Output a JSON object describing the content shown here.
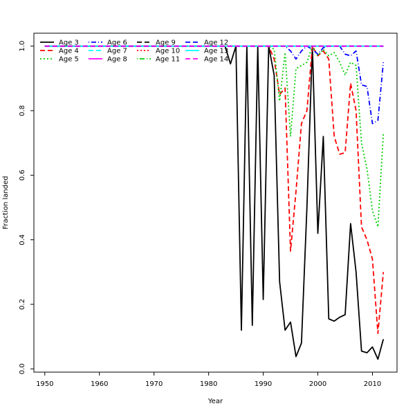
{
  "chart_data": {
    "type": "line",
    "xlabel": "Year",
    "ylabel": "Fraction landed",
    "xlim": [
      1948,
      2014.5
    ],
    "ylim": [
      -0.01,
      1.04
    ],
    "xticks": [
      "1950",
      "1960",
      "1970",
      "1980",
      "1990",
      "2000",
      "2010"
    ],
    "yticks": [
      "0.0",
      "0.2",
      "0.4",
      "0.6",
      "0.8",
      "1.0"
    ],
    "legend_position": "top-left",
    "series": [
      {
        "name": "Age 3",
        "color": "#000000",
        "dash": "solid",
        "x": [
          1950,
          1951,
          1952,
          1953,
          1954,
          1955,
          1956,
          1957,
          1958,
          1959,
          1960,
          1961,
          1962,
          1963,
          1964,
          1965,
          1966,
          1967,
          1968,
          1969,
          1970,
          1971,
          1972,
          1973,
          1974,
          1975,
          1976,
          1977,
          1978,
          1979,
          1980,
          1981,
          1982,
          1983,
          1984,
          1985,
          1986,
          1987,
          1988,
          1989,
          1990,
          1991,
          1992,
          1993,
          1994,
          1995,
          1996,
          1997,
          1998,
          1999,
          2000,
          2001,
          2002,
          2003,
          2004,
          2005,
          2006,
          2007,
          2008,
          2009,
          2010,
          2011,
          2012
        ],
        "y": [
          1,
          1,
          1,
          1,
          1,
          1,
          1,
          1,
          1,
          1,
          1,
          1,
          1,
          1,
          1,
          1,
          1,
          1,
          1,
          1,
          1,
          1,
          1,
          1,
          1,
          1,
          1,
          1,
          1,
          1,
          1,
          1,
          1,
          1,
          0.945,
          1,
          0.12,
          1,
          0.135,
          1,
          0.215,
          1,
          0.91,
          0.27,
          0.12,
          0.145,
          0.038,
          0.08,
          0.5,
          1,
          0.42,
          0.72,
          0.155,
          0.148,
          0.16,
          0.168,
          0.45,
          0.3,
          0.055,
          0.05,
          0.068,
          0.03,
          0.092
        ]
      },
      {
        "name": "Age 4",
        "color": "#ff0000",
        "dash": "longdash",
        "x": [
          1950,
          1985,
          1990,
          1991,
          1992,
          1993,
          1994,
          1995,
          1996,
          1997,
          1998,
          1999,
          2000,
          2001,
          2002,
          2003,
          2004,
          2005,
          2006,
          2007,
          2008,
          2009,
          2010,
          2011,
          2012
        ],
        "y": [
          1,
          1,
          1,
          1,
          0.96,
          0.85,
          0.87,
          0.365,
          0.55,
          0.76,
          0.8,
          1,
          0.97,
          0.985,
          0.96,
          0.72,
          0.665,
          0.67,
          0.885,
          0.8,
          0.44,
          0.4,
          0.34,
          0.11,
          0.3
        ]
      },
      {
        "name": "Age 5",
        "color": "#00cd00",
        "dash": "dotted",
        "x": [
          1950,
          1990,
          1991,
          1992,
          1993,
          1994,
          1995,
          1996,
          1997,
          1998,
          1999,
          2000,
          2001,
          2002,
          2003,
          2004,
          2005,
          2006,
          2007,
          2008,
          2009,
          2010,
          2011,
          2012
        ],
        "y": [
          1,
          1,
          1,
          0.99,
          0.83,
          0.98,
          0.72,
          0.93,
          0.94,
          0.95,
          1,
          0.97,
          0.99,
          0.97,
          0.98,
          0.95,
          0.91,
          0.95,
          0.94,
          0.7,
          0.62,
          0.49,
          0.44,
          0.73
        ]
      },
      {
        "name": "Age 6",
        "color": "#0000ff",
        "dash": "dotdash",
        "x": [
          1950,
          1993,
          1994,
          1995,
          1996,
          1997,
          1998,
          1999,
          2000,
          2001,
          2002,
          2003,
          2004,
          2005,
          2006,
          2007,
          2008,
          2009,
          2010,
          2011,
          2012
        ],
        "y": [
          1,
          1,
          1,
          0.985,
          0.96,
          0.985,
          1,
          0.99,
          0.975,
          0.995,
          1,
          1,
          1,
          0.975,
          0.97,
          0.985,
          0.88,
          0.875,
          0.76,
          0.77,
          0.95
        ]
      },
      {
        "name": "Age 7",
        "color": "#00ffff",
        "dash": "longdash",
        "x": [
          1950,
          2012
        ],
        "y": [
          1,
          1
        ]
      },
      {
        "name": "Age 8",
        "color": "#ff00ff",
        "dash": "solid",
        "x": [
          1950,
          2012
        ],
        "y": [
          1,
          1
        ]
      },
      {
        "name": "Age 9",
        "color": "#000000",
        "dash": "longdash",
        "x": [
          1950,
          2012
        ],
        "y": [
          1,
          1
        ]
      },
      {
        "name": "Age 10",
        "color": "#ff0000",
        "dash": "dotted",
        "x": [
          1950,
          2012
        ],
        "y": [
          1,
          1
        ]
      },
      {
        "name": "Age 11",
        "color": "#00cd00",
        "dash": "dotdash",
        "x": [
          1950,
          2012
        ],
        "y": [
          1,
          1
        ]
      },
      {
        "name": "Age 12",
        "color": "#0000ff",
        "dash": "longdash",
        "x": [
          1950,
          2012
        ],
        "y": [
          1,
          1
        ]
      },
      {
        "name": "Age 13",
        "color": "#00ffff",
        "dash": "solid",
        "x": [
          1950,
          2012
        ],
        "y": [
          1,
          1
        ]
      },
      {
        "name": "Age 14",
        "color": "#ff00ff",
        "dash": "longdash",
        "x": [
          1950,
          2012
        ],
        "y": [
          1,
          1
        ]
      }
    ]
  }
}
